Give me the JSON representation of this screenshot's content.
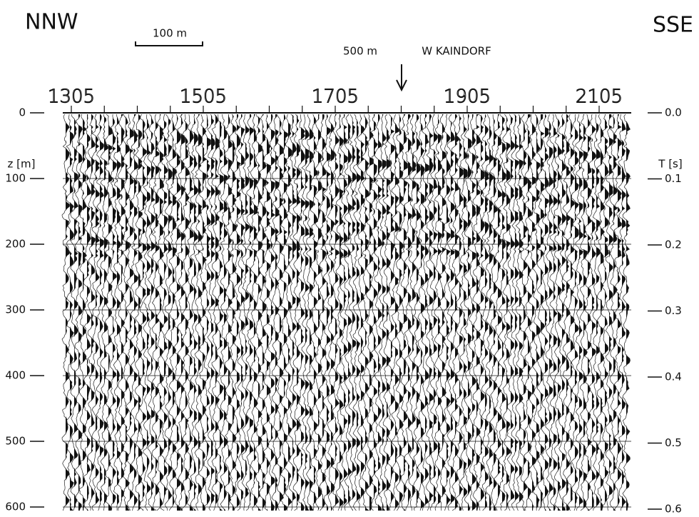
{
  "header": {
    "left": "NNW",
    "right": "SSE",
    "scale_label": "100 m",
    "marker_distance": "500 m",
    "marker_label": "W KAINDORF"
  },
  "top_axis": {
    "ticks": [
      "1305",
      "1505",
      "1705",
      "1905",
      "2105"
    ]
  },
  "left_axis": {
    "label": "z [m]",
    "ticks": [
      "0",
      "100",
      "200",
      "300",
      "400",
      "500",
      "600"
    ]
  },
  "right_axis": {
    "label": "T [s]",
    "ticks": [
      "0.0",
      "0.1",
      "0.2",
      "0.3",
      "0.4",
      "0.5",
      "0.6"
    ]
  }
}
